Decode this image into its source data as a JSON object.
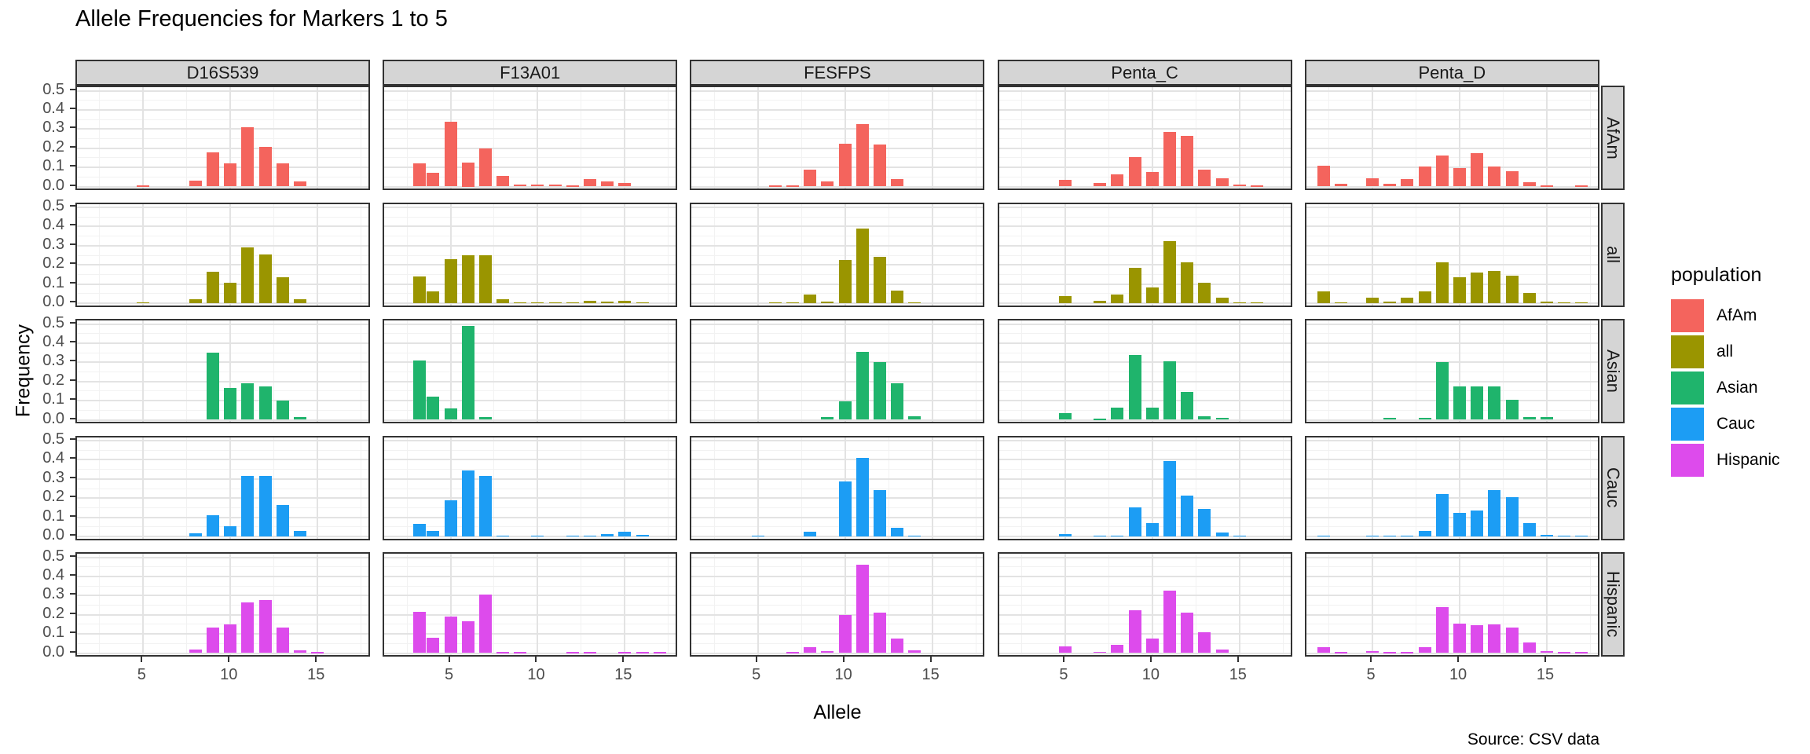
{
  "chart_data": {
    "type": "bar",
    "title": "Allele Frequencies for Markers 1 to 5",
    "xlabel": "Allele",
    "ylabel": "Frequency",
    "caption": "Source: CSV data",
    "legend_title": "population",
    "legend_position": "right",
    "grid": true,
    "x_ticks": [
      5,
      10,
      15
    ],
    "y_ticks": [
      0.0,
      0.1,
      0.2,
      0.3,
      0.4,
      0.5
    ],
    "x_minor": [
      2.5,
      7.5,
      12.5,
      17.5
    ],
    "y_minor": [
      0.05,
      0.15,
      0.25,
      0.35,
      0.45
    ],
    "x_range": [
      1.2,
      18.1
    ],
    "ylim": [
      0,
      0.5
    ],
    "facet_columns": [
      "D16S539",
      "F13A01",
      "FESFPS",
      "Penta_C",
      "Penta_D"
    ],
    "facet_rows": [
      "AfAm",
      "all",
      "Asian",
      "Cauc",
      "Hispanic"
    ],
    "populations": [
      {
        "name": "AfAm",
        "color": "#F4645D"
      },
      {
        "name": "all",
        "color": "#9A9500"
      },
      {
        "name": "Asian",
        "color": "#1FB46C"
      },
      {
        "name": "Cauc",
        "color": "#1C9DF4"
      },
      {
        "name": "Hispanic",
        "color": "#DD4BEC"
      }
    ],
    "series_note": "values are [allele, frequency] pairs per marker per population",
    "facets": {
      "D16S539": {
        "AfAm": [
          [
            5,
            0.004
          ],
          [
            8,
            0.03
          ],
          [
            9,
            0.18
          ],
          [
            10,
            0.12
          ],
          [
            11,
            0.31
          ],
          [
            12,
            0.205
          ],
          [
            13,
            0.12
          ],
          [
            14,
            0.025
          ]
        ],
        "all": [
          [
            5,
            0.003
          ],
          [
            8,
            0.02
          ],
          [
            9,
            0.165
          ],
          [
            10,
            0.105
          ],
          [
            11,
            0.29
          ],
          [
            12,
            0.255
          ],
          [
            13,
            0.135
          ],
          [
            14,
            0.02
          ]
        ],
        "Asian": [
          [
            9,
            0.35
          ],
          [
            10,
            0.165
          ],
          [
            11,
            0.19
          ],
          [
            12,
            0.175
          ],
          [
            13,
            0.1
          ],
          [
            14,
            0.015
          ]
        ],
        "Cauc": [
          [
            8,
            0.015
          ],
          [
            9,
            0.11
          ],
          [
            10,
            0.055
          ],
          [
            11,
            0.315
          ],
          [
            12,
            0.315
          ],
          [
            13,
            0.165
          ],
          [
            14,
            0.03
          ]
        ],
        "Hispanic": [
          [
            8,
            0.02
          ],
          [
            9,
            0.135
          ],
          [
            10,
            0.15
          ],
          [
            11,
            0.265
          ],
          [
            12,
            0.275
          ],
          [
            13,
            0.135
          ],
          [
            14,
            0.015
          ],
          [
            15,
            0.004
          ]
        ]
      },
      "F13A01": {
        "AfAm": [
          [
            3.2,
            0.12
          ],
          [
            4,
            0.07
          ],
          [
            5,
            0.34
          ],
          [
            6,
            0.125
          ],
          [
            7,
            0.2
          ],
          [
            8,
            0.055
          ],
          [
            9,
            0.012
          ],
          [
            10,
            0.01
          ],
          [
            11,
            0.01
          ],
          [
            12,
            0.006
          ],
          [
            13,
            0.038
          ],
          [
            14,
            0.026
          ],
          [
            15,
            0.02
          ]
        ],
        "all": [
          [
            3.2,
            0.14
          ],
          [
            4,
            0.06
          ],
          [
            5,
            0.23
          ],
          [
            6,
            0.25
          ],
          [
            7,
            0.25
          ],
          [
            8,
            0.02
          ],
          [
            9,
            0.005
          ],
          [
            10,
            0.005
          ],
          [
            11,
            0.005
          ],
          [
            12,
            0.004
          ],
          [
            13,
            0.012
          ],
          [
            14,
            0.008
          ],
          [
            15,
            0.012
          ],
          [
            16,
            0.004
          ]
        ],
        "Asian": [
          [
            3.2,
            0.31
          ],
          [
            4,
            0.12
          ],
          [
            5,
            0.06
          ],
          [
            6,
            0.49
          ],
          [
            7,
            0.015
          ]
        ],
        "Cauc": [
          [
            3.2,
            0.065
          ],
          [
            4,
            0.03
          ],
          [
            5,
            0.19
          ],
          [
            6,
            0.345
          ],
          [
            7,
            0.315
          ],
          [
            8,
            0.005
          ],
          [
            10,
            0.003
          ],
          [
            12,
            0.003
          ],
          [
            13,
            0.003
          ],
          [
            14,
            0.012
          ],
          [
            15,
            0.025
          ],
          [
            16,
            0.008
          ]
        ],
        "Hispanic": [
          [
            3.2,
            0.215
          ],
          [
            4,
            0.08
          ],
          [
            5,
            0.19
          ],
          [
            6,
            0.165
          ],
          [
            7,
            0.305
          ],
          [
            8,
            0.005
          ],
          [
            9,
            0.005
          ],
          [
            12,
            0.005
          ],
          [
            13,
            0.005
          ],
          [
            15,
            0.006
          ],
          [
            16,
            0.005
          ],
          [
            17,
            0.003
          ]
        ]
      },
      "FESFPS": {
        "AfAm": [
          [
            6,
            0.005
          ],
          [
            7,
            0.006
          ],
          [
            8,
            0.09
          ],
          [
            9,
            0.027
          ],
          [
            10,
            0.225
          ],
          [
            11,
            0.325
          ],
          [
            12,
            0.22
          ],
          [
            13,
            0.04
          ]
        ],
        "all": [
          [
            6,
            0.003
          ],
          [
            7,
            0.005
          ],
          [
            8,
            0.047
          ],
          [
            9,
            0.01
          ],
          [
            10,
            0.225
          ],
          [
            11,
            0.39
          ],
          [
            12,
            0.24
          ],
          [
            13,
            0.065
          ],
          [
            14,
            0.005
          ]
        ],
        "Asian": [
          [
            9,
            0.015
          ],
          [
            10,
            0.095
          ],
          [
            11,
            0.355
          ],
          [
            12,
            0.3
          ],
          [
            13,
            0.19
          ],
          [
            14,
            0.02
          ]
        ],
        "Cauc": [
          [
            5,
            0.003
          ],
          [
            8,
            0.025
          ],
          [
            10,
            0.285
          ],
          [
            11,
            0.41
          ],
          [
            12,
            0.24
          ],
          [
            13,
            0.045
          ],
          [
            14,
            0.004
          ]
        ],
        "Hispanic": [
          [
            7,
            0.005
          ],
          [
            8,
            0.03
          ],
          [
            9,
            0.012
          ],
          [
            10,
            0.2
          ],
          [
            11,
            0.46
          ],
          [
            12,
            0.21
          ],
          [
            13,
            0.075
          ],
          [
            14,
            0.015
          ]
        ]
      },
      "Penta_C": {
        "AfAm": [
          [
            5,
            0.035
          ],
          [
            7,
            0.02
          ],
          [
            8,
            0.065
          ],
          [
            9,
            0.155
          ],
          [
            10,
            0.075
          ],
          [
            11,
            0.285
          ],
          [
            12,
            0.265
          ],
          [
            13,
            0.09
          ],
          [
            14,
            0.045
          ],
          [
            15,
            0.012
          ],
          [
            16,
            0.006
          ]
        ],
        "all": [
          [
            5,
            0.035
          ],
          [
            7,
            0.012
          ],
          [
            8,
            0.045
          ],
          [
            9,
            0.185
          ],
          [
            10,
            0.08
          ],
          [
            11,
            0.325
          ],
          [
            12,
            0.215
          ],
          [
            13,
            0.105
          ],
          [
            14,
            0.03
          ],
          [
            15,
            0.006
          ],
          [
            16,
            0.004
          ]
        ],
        "Asian": [
          [
            5,
            0.035
          ],
          [
            7,
            0.005
          ],
          [
            8,
            0.065
          ],
          [
            9,
            0.34
          ],
          [
            10,
            0.065
          ],
          [
            11,
            0.305
          ],
          [
            12,
            0.145
          ],
          [
            13,
            0.02
          ],
          [
            14,
            0.01
          ]
        ],
        "Cauc": [
          [
            5,
            0.012
          ],
          [
            7,
            0.005
          ],
          [
            8,
            0.005
          ],
          [
            9,
            0.15
          ],
          [
            10,
            0.07
          ],
          [
            11,
            0.395
          ],
          [
            12,
            0.215
          ],
          [
            13,
            0.145
          ],
          [
            14,
            0.02
          ],
          [
            15,
            0.005
          ]
        ],
        "Hispanic": [
          [
            5,
            0.035
          ],
          [
            7,
            0.008
          ],
          [
            8,
            0.045
          ],
          [
            9,
            0.225
          ],
          [
            10,
            0.075
          ],
          [
            11,
            0.325
          ],
          [
            12,
            0.21
          ],
          [
            13,
            0.11
          ],
          [
            14,
            0.02
          ]
        ]
      },
      "Penta_D": {
        "AfAm": [
          [
            2.2,
            0.11
          ],
          [
            3.2,
            0.015
          ],
          [
            5,
            0.045
          ],
          [
            6,
            0.015
          ],
          [
            7,
            0.04
          ],
          [
            8,
            0.105
          ],
          [
            9,
            0.16
          ],
          [
            10,
            0.095
          ],
          [
            11,
            0.175
          ],
          [
            12,
            0.105
          ],
          [
            13,
            0.08
          ],
          [
            14,
            0.023
          ],
          [
            15,
            0.004
          ],
          [
            17,
            0.004
          ]
        ],
        "all": [
          [
            2.2,
            0.06
          ],
          [
            3.2,
            0.005
          ],
          [
            5,
            0.028
          ],
          [
            6,
            0.008
          ],
          [
            7,
            0.028
          ],
          [
            8,
            0.062
          ],
          [
            9,
            0.215
          ],
          [
            10,
            0.135
          ],
          [
            11,
            0.16
          ],
          [
            12,
            0.17
          ],
          [
            13,
            0.145
          ],
          [
            14,
            0.055
          ],
          [
            15,
            0.008
          ],
          [
            16,
            0.003
          ],
          [
            17,
            0.003
          ]
        ],
        "Asian": [
          [
            6,
            0.01
          ],
          [
            8,
            0.01
          ],
          [
            9,
            0.3
          ],
          [
            10,
            0.175
          ],
          [
            11,
            0.175
          ],
          [
            12,
            0.175
          ],
          [
            13,
            0.105
          ],
          [
            14,
            0.015
          ],
          [
            15,
            0.015
          ]
        ],
        "Cauc": [
          [
            2.2,
            0.005
          ],
          [
            5,
            0.005
          ],
          [
            6,
            0.004
          ],
          [
            7,
            0.004
          ],
          [
            8,
            0.03
          ],
          [
            9,
            0.22
          ],
          [
            10,
            0.125
          ],
          [
            11,
            0.135
          ],
          [
            12,
            0.24
          ],
          [
            13,
            0.205
          ],
          [
            14,
            0.07
          ],
          [
            15,
            0.01
          ],
          [
            16,
            0.005
          ],
          [
            17,
            0.003
          ]
        ],
        "Hispanic": [
          [
            2.2,
            0.03
          ],
          [
            3.2,
            0.005
          ],
          [
            5,
            0.01
          ],
          [
            6,
            0.005
          ],
          [
            7,
            0.005
          ],
          [
            8,
            0.03
          ],
          [
            9,
            0.24
          ],
          [
            10,
            0.155
          ],
          [
            11,
            0.145
          ],
          [
            12,
            0.15
          ],
          [
            13,
            0.135
          ],
          [
            14,
            0.055
          ],
          [
            15,
            0.012
          ],
          [
            16,
            0.005
          ],
          [
            17,
            0.004
          ]
        ]
      }
    },
    "style": {
      "strip_fill": "#d5d5d5",
      "panel_border": "#333333",
      "grid_major": "#e3e3e3",
      "grid_minor": "#f2f2f2",
      "tick_text": "#4d4d4d"
    }
  }
}
